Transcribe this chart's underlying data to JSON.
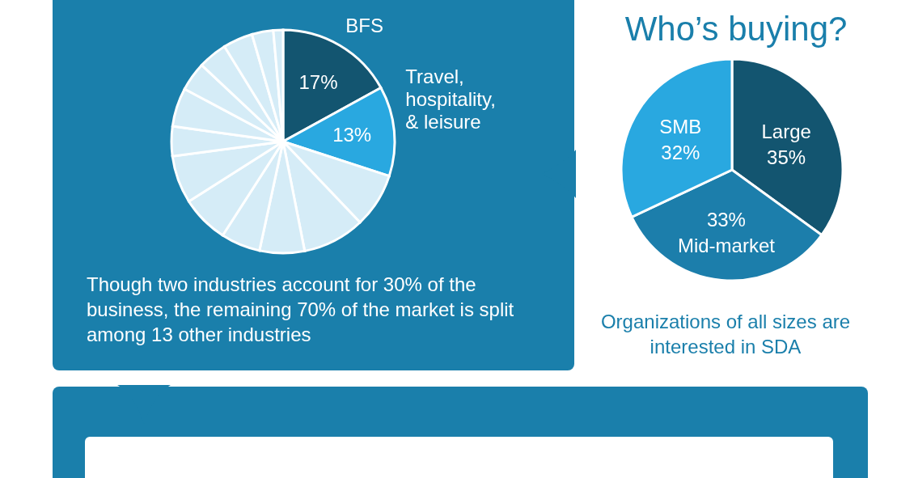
{
  "chart_data": [
    {
      "type": "pie",
      "categories": [
        "BFS",
        "Travel, hospitality, & leisure",
        null,
        null,
        null,
        null,
        null,
        null,
        null,
        null,
        null,
        null,
        null,
        null,
        null
      ],
      "values": [
        17,
        13,
        7.9,
        9.0,
        6.5,
        5.7,
        6.9,
        6.9,
        4.3,
        5.6,
        4.2,
        4.2,
        4.3,
        3.1,
        1.4
      ],
      "colors": [
        "#135570",
        "#29a8e0",
        "#d5ecf7",
        "#d5ecf7",
        "#d5ecf7",
        "#d5ecf7",
        "#d5ecf7",
        "#d5ecf7",
        "#d5ecf7",
        "#d5ecf7",
        "#d5ecf7",
        "#d5ecf7",
        "#d5ecf7",
        "#d5ecf7",
        "#d5ecf7"
      ],
      "value_labels": [
        "17%",
        "13%",
        null,
        null,
        null,
        null,
        null,
        null,
        null,
        null,
        null,
        null,
        null,
        null,
        null
      ],
      "annotations": [
        "Though two industries account for 30% of the business, the remaining 70% of the market is split among 13 other industries"
      ]
    },
    {
      "type": "pie",
      "title": "Who’s buying?",
      "categories": [
        "Large",
        "Mid-market",
        "SMB"
      ],
      "values": [
        35,
        33,
        32
      ],
      "colors": [
        "#135570",
        "#1c7eab",
        "#29a8e0"
      ],
      "value_labels": [
        "35%",
        "33%",
        "32%"
      ],
      "annotations": [
        "Organizations of all sizes are interested in SDA"
      ]
    }
  ]
}
